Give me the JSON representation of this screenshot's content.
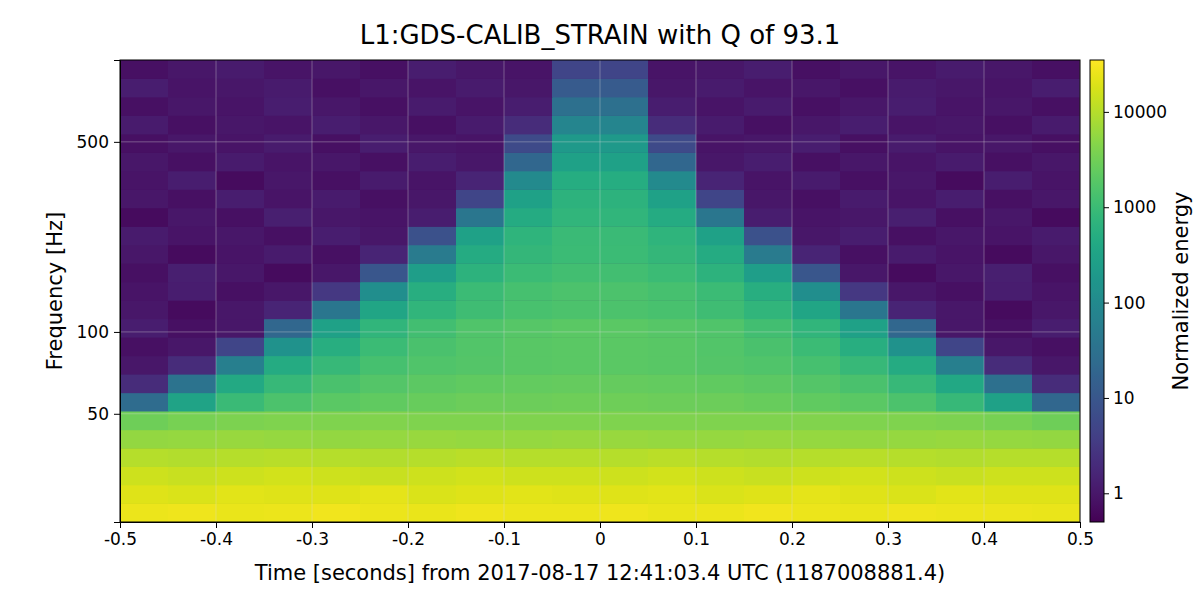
{
  "chart_data": {
    "type": "heatmap",
    "title": "L1:GDS-CALIB_STRAIN with Q of 93.1",
    "x_label": "Time [seconds] from 2017-08-17 12:41:03.4 UTC (1187008881.4)",
    "y_label": "Frequency [Hz]",
    "colorbar_label": "Normalized energy",
    "xlim": [
      -0.5,
      0.5
    ],
    "ylim": [
      20,
      1000
    ],
    "xticks": [
      -0.5,
      -0.4,
      -0.3,
      -0.2,
      -0.1,
      0,
      0.1,
      0.2,
      0.3,
      0.4,
      0.5
    ],
    "yticks": [
      50,
      100,
      500
    ],
    "log": "y",
    "grid": true,
    "color": "viridis",
    "clim": [
      0.5,
      35000
    ],
    "cticks": [
      1,
      10,
      100,
      1000,
      10000
    ],
    "x_bins": [
      -0.5,
      -0.45,
      -0.4,
      -0.35,
      -0.3,
      -0.25,
      -0.2,
      -0.15,
      -0.1,
      -0.05,
      0,
      0.05,
      0.1,
      0.15,
      0.2,
      0.25,
      0.3,
      0.35,
      0.4,
      0.45,
      0.5
    ],
    "y_bins": [
      20,
      23.4,
      27.4,
      32,
      37.4,
      43.7,
      51.2,
      59.8,
      70,
      81.8,
      95.7,
      111.9,
      130.8,
      153,
      178.9,
      209.2,
      244.6,
      286.1,
      334.5,
      391.2,
      457.5,
      535,
      625.7,
      731.7,
      855.7,
      1000
    ],
    "cells": [
      [
        25000,
        26000,
        24000,
        25000,
        27000,
        25000,
        24000,
        26000,
        25000,
        25000,
        26000,
        24000,
        25000,
        27000,
        25000,
        24000,
        26000,
        25000,
        25000,
        24000
      ],
      [
        20000,
        19000,
        21000,
        20000,
        20000,
        22000,
        19000,
        20000,
        21000,
        20000,
        20000,
        21000,
        19000,
        20000,
        22000,
        20000,
        19000,
        21000,
        20000,
        20000
      ],
      [
        15000,
        14000,
        15000,
        16000,
        15000,
        14000,
        15000,
        16000,
        15000,
        15000,
        15000,
        16000,
        15000,
        14000,
        15000,
        16000,
        15000,
        14000,
        15000,
        15000
      ],
      [
        10000,
        9500,
        10000,
        10500,
        10000,
        9500,
        10000,
        11000,
        10000,
        10000,
        10000,
        11000,
        10000,
        9500,
        10000,
        10500,
        10000,
        9500,
        10000,
        10000
      ],
      [
        5800,
        6000,
        6200,
        6000,
        5800,
        6000,
        6200,
        6000,
        6000,
        6200,
        6200,
        6000,
        6000,
        6200,
        6000,
        5800,
        6000,
        6200,
        6000,
        5800
      ],
      [
        3000,
        3500,
        3800,
        4000,
        4000,
        4200,
        4000,
        4000,
        4100,
        4000,
        4000,
        4100,
        4000,
        4000,
        4200,
        4000,
        4000,
        3800,
        3500,
        3000
      ],
      [
        25,
        320,
        950,
        1500,
        2000,
        2300,
        2600,
        2800,
        2900,
        3000,
        3000,
        2900,
        2800,
        2600,
        2300,
        2000,
        1500,
        900,
        300,
        20
      ],
      [
        2,
        35,
        420,
        900,
        1400,
        1800,
        2100,
        2300,
        2400,
        2500,
        2500,
        2400,
        2300,
        2100,
        1800,
        1400,
        900,
        400,
        30,
        2
      ],
      [
        1,
        2,
        60,
        450,
        900,
        1300,
        1600,
        1800,
        1900,
        2000,
        2000,
        1900,
        1800,
        1600,
        1300,
        900,
        450,
        60,
        2,
        1
      ],
      [
        0.8,
        1,
        5,
        150,
        550,
        1000,
        1400,
        1700,
        1900,
        2000,
        2000,
        1900,
        1700,
        1400,
        1000,
        550,
        150,
        5,
        1,
        0.8
      ],
      [
        1.2,
        0.8,
        1,
        20,
        300,
        750,
        1200,
        1600,
        1850,
        2000,
        2000,
        1850,
        1600,
        1200,
        750,
        300,
        20,
        1,
        0.8,
        1.2
      ],
      [
        1,
        0.7,
        1,
        1.5,
        40,
        350,
        750,
        1100,
        1350,
        1500,
        1500,
        1350,
        1100,
        750,
        350,
        40,
        1.5,
        1,
        0.7,
        1
      ],
      [
        0.9,
        1.2,
        0.8,
        1,
        3,
        120,
        550,
        1000,
        1300,
        1500,
        1500,
        1300,
        1000,
        550,
        120,
        3,
        1,
        0.8,
        1.2,
        0.9
      ],
      [
        0.8,
        1.3,
        1,
        0.7,
        1,
        10,
        250,
        650,
        1000,
        1200,
        1200,
        1000,
        650,
        250,
        10,
        1,
        0.7,
        1,
        1.3,
        0.8
      ],
      [
        1,
        0.7,
        0.9,
        1.1,
        0.8,
        1.5,
        50,
        450,
        800,
        1000,
        1000,
        800,
        450,
        50,
        1.5,
        0.8,
        1.1,
        0.9,
        0.7,
        1
      ],
      [
        1.1,
        0.9,
        1,
        0.8,
        1.2,
        1,
        8,
        300,
        700,
        950,
        950,
        700,
        300,
        8,
        1,
        1.2,
        0.8,
        1,
        0.9,
        1.1
      ],
      [
        0.7,
        1,
        0.8,
        1.3,
        1,
        0.9,
        1.2,
        40,
        450,
        750,
        750,
        450,
        40,
        1.2,
        0.9,
        1,
        1.3,
        0.8,
        1,
        0.7
      ],
      [
        1,
        0.8,
        1.2,
        0.9,
        1.1,
        0.8,
        1,
        5,
        300,
        650,
        650,
        300,
        5,
        1,
        0.8,
        1.1,
        0.9,
        1.2,
        0.8,
        1
      ],
      [
        0.9,
        1.2,
        0.7,
        1,
        0.8,
        1.1,
        0.9,
        1.5,
        100,
        500,
        500,
        100,
        1.5,
        0.9,
        1.1,
        0.8,
        1,
        0.7,
        1.2,
        0.9
      ],
      [
        1,
        0.8,
        1.1,
        0.9,
        1,
        0.8,
        1.2,
        1,
        20,
        300,
        300,
        20,
        1,
        1.2,
        0.8,
        1,
        0.9,
        1.1,
        0.8,
        1
      ],
      [
        0.8,
        1,
        0.9,
        1.1,
        0.8,
        1.2,
        1,
        0.9,
        6,
        200,
        200,
        6,
        0.9,
        1,
        1.2,
        0.8,
        1.1,
        0.9,
        1,
        0.8
      ],
      [
        1.1,
        0.8,
        1,
        0.9,
        1.2,
        1,
        0.8,
        1.1,
        2,
        80,
        80,
        2,
        1.1,
        0.8,
        1,
        1.2,
        0.9,
        1,
        0.8,
        1.1
      ],
      [
        0.8,
        1,
        0.9,
        1.2,
        1,
        0.8,
        1.1,
        0.9,
        1.2,
        30,
        30,
        1.2,
        0.9,
        1.1,
        0.8,
        1,
        1.2,
        0.9,
        1,
        0.8
      ],
      [
        1.2,
        0.9,
        1,
        1.1,
        0.8,
        1,
        0.9,
        1.1,
        1,
        12,
        12,
        1,
        1.1,
        0.9,
        1,
        0.8,
        1.1,
        1,
        0.9,
        1.2
      ],
      [
        0.8,
        1,
        1.1,
        0.9,
        1,
        0.8,
        1.2,
        1,
        0.9,
        5,
        5,
        0.9,
        1,
        1.2,
        0.8,
        1,
        0.9,
        1.1,
        1,
        0.8
      ]
    ]
  }
}
